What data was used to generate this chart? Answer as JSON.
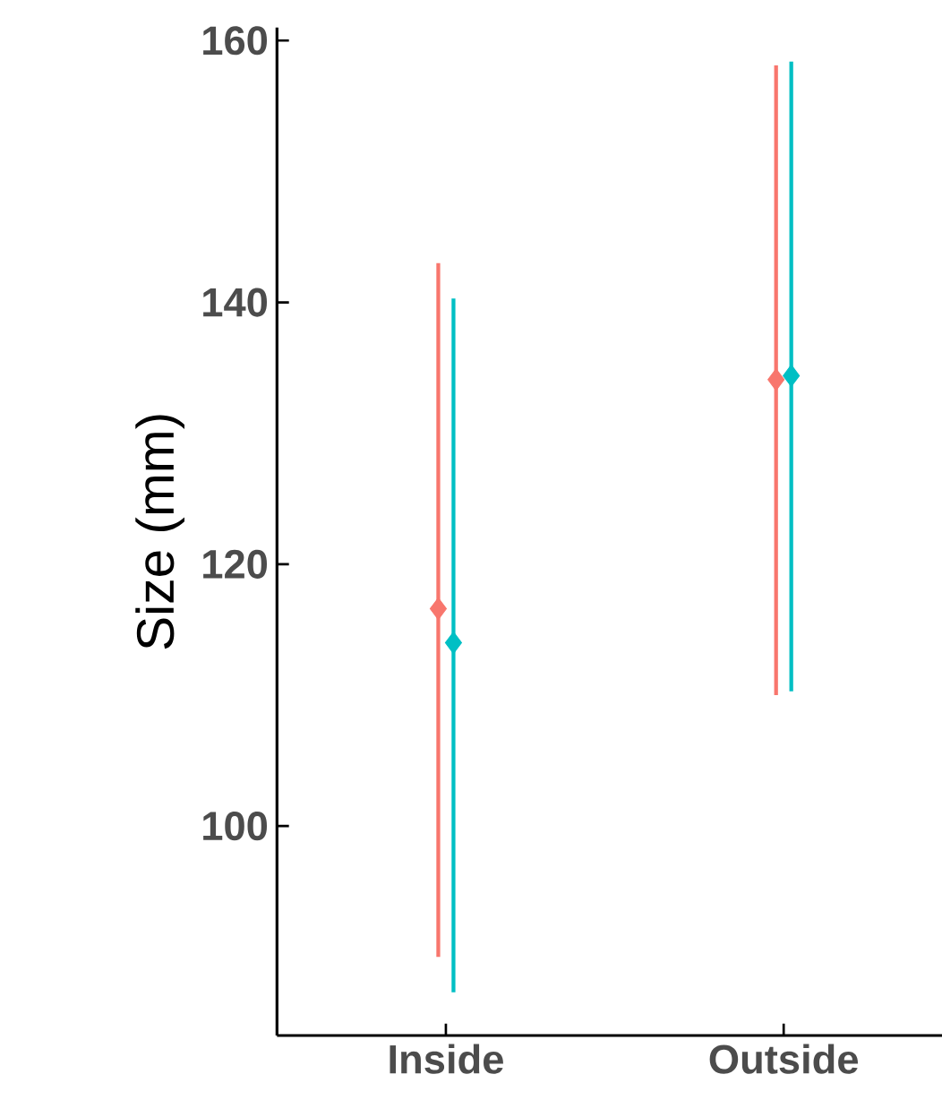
{
  "chart_data": {
    "type": "scatter",
    "ylabel": "Size (mm)",
    "categories": [
      "Inside",
      "Outside"
    ],
    "series": [
      {
        "color": "#f8766d",
        "values": [
          116.6,
          134.1
        ],
        "errors": [
          [
            90,
            143
          ],
          [
            110,
            158.1
          ]
        ]
      },
      {
        "color": "#00bfc4",
        "values": [
          114,
          134.4
        ],
        "errors": [
          [
            87.3,
            140.3
          ],
          [
            110.3,
            158.4
          ]
        ]
      }
    ],
    "ylim": [
      84,
      161
    ],
    "yticks": [
      100,
      120,
      140,
      160
    ],
    "marker": "diamond",
    "grid": false
  }
}
